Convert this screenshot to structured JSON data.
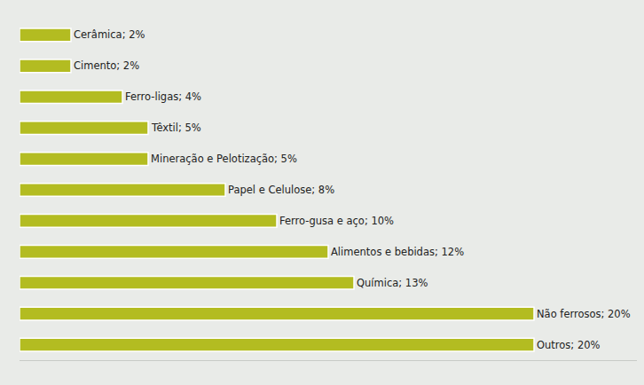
{
  "chart_data": {
    "type": "bar",
    "orientation": "horizontal",
    "categories": [
      "Cerâmica",
      "Cimento",
      "Ferro-ligas",
      "Têxtil",
      "Mineração e Pelotização",
      "Papel e Celulose",
      "Ferro-gusa e aço",
      "Alimentos e bebidas",
      "Química",
      "Não ferrosos",
      "Outros"
    ],
    "values": [
      2,
      2,
      4,
      5,
      5,
      8,
      10,
      12,
      13,
      20,
      20
    ],
    "value_labels": [
      "Cerâmica; 2%",
      "Cimento; 2%",
      "Ferro-ligas; 4%",
      "Têxtil; 5%",
      "Mineração e Pelotização; 5%",
      "Papel e Celulose; 8%",
      "Ferro-gusa e aço; 10%",
      "Alimentos e bebidas; 12%",
      "Química; 13%",
      "Não ferrosos; 20%",
      "Outros; 20%"
    ],
    "color": "#b3bc21",
    "xlim": [
      0,
      24
    ],
    "xticks": [],
    "grid": false,
    "data_labels": true,
    "tick_labels": false
  }
}
